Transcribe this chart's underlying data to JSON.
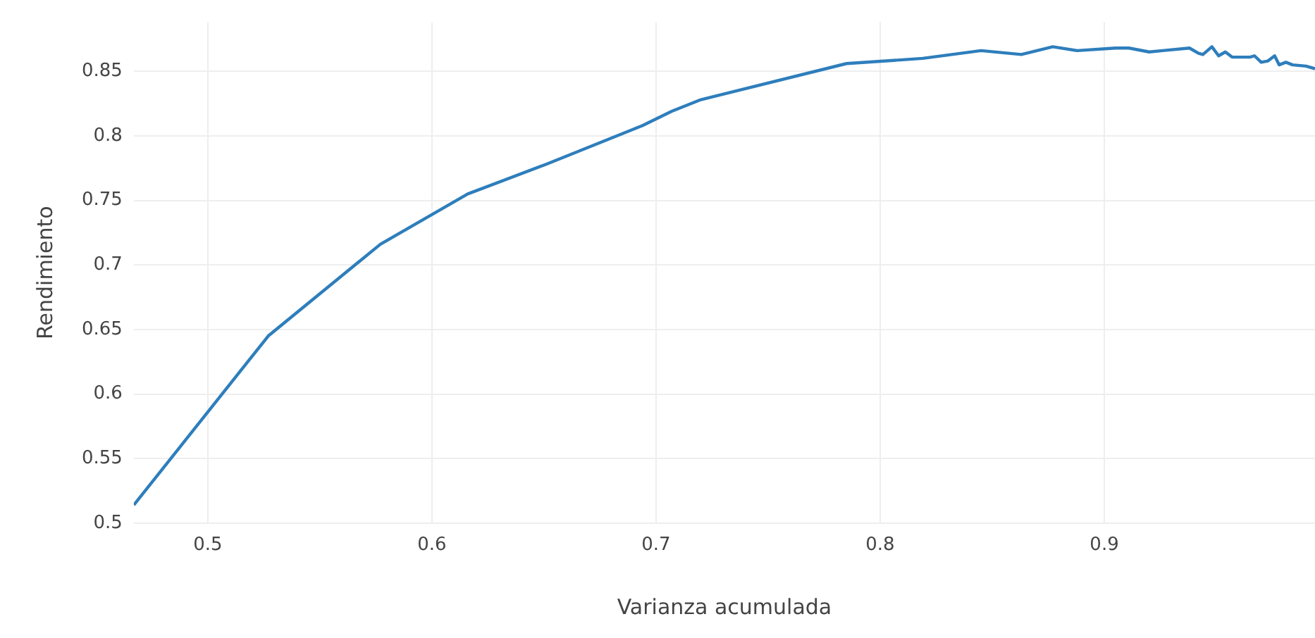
{
  "chart_data": {
    "type": "line",
    "xlabel": "Varianza acumulada",
    "ylabel": "Rendimiento",
    "x": [
      0.467,
      0.527,
      0.577,
      0.616,
      0.651,
      0.694,
      0.707,
      0.72,
      0.785,
      0.819,
      0.845,
      0.863,
      0.877,
      0.888,
      0.905,
      0.911,
      0.92,
      0.926,
      0.938,
      0.942,
      0.944,
      0.948,
      0.951,
      0.954,
      0.957,
      0.965,
      0.967,
      0.97,
      0.973,
      0.976,
      0.978,
      0.981,
      0.984,
      0.99,
      0.994
    ],
    "series": [
      {
        "color": "#2e7ebc",
        "values": [
          0.514,
          0.645,
          0.716,
          0.755,
          0.778,
          0.808,
          0.819,
          0.828,
          0.856,
          0.86,
          0.866,
          0.863,
          0.869,
          0.866,
          0.868,
          0.868,
          0.865,
          0.866,
          0.868,
          0.864,
          0.863,
          0.869,
          0.862,
          0.865,
          0.861,
          0.861,
          0.862,
          0.857,
          0.858,
          0.862,
          0.855,
          0.857,
          0.855,
          0.854,
          0.852
        ]
      }
    ],
    "xlim": [
      0.467,
      0.994
    ],
    "ylim": [
      0.5,
      0.888
    ],
    "xticks": [
      0.5,
      0.6,
      0.7,
      0.8,
      0.9
    ],
    "yticks": [
      0.5,
      0.55,
      0.6,
      0.65,
      0.7,
      0.75,
      0.8,
      0.85
    ],
    "grid": true,
    "legend": false,
    "marker": "none",
    "line_style": "solid"
  }
}
